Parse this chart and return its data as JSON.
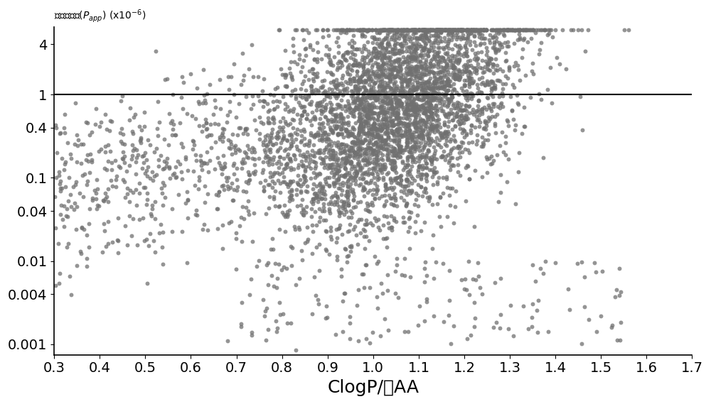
{
  "xlabel": "ClogP/总AA",
  "ylabel_ticks": [
    "0.001",
    "0.004",
    "0.01",
    "0.04",
    "0.1",
    "0.4",
    "1",
    "4"
  ],
  "ytick_vals": [
    0.001,
    0.004,
    0.01,
    0.04,
    0.1,
    0.4,
    1.0,
    4.0
  ],
  "xtick_vals": [
    0.3,
    0.4,
    0.5,
    0.6,
    0.7,
    0.8,
    0.9,
    1.0,
    1.1,
    1.2,
    1.3,
    1.4,
    1.5,
    1.6,
    1.7
  ],
  "xlim": [
    0.3,
    1.7
  ],
  "hline_y": 1.0,
  "dot_color": "#707070",
  "bg_color": "#ffffff",
  "n_points": 5000,
  "seed": 42,
  "marker_size": 18,
  "line_width": 1.5,
  "tick_fontsize": 14,
  "label_fontsize": 18,
  "title_fontsize": 18
}
